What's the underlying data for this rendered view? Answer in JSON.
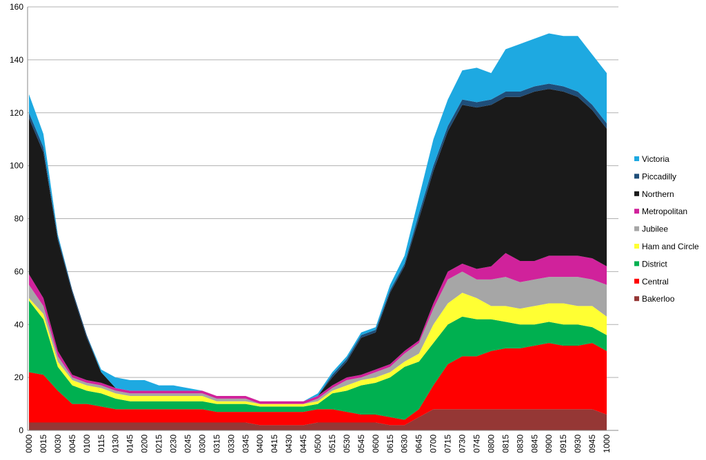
{
  "chart_data": {
    "type": "stacked-area",
    "categories": [
      "0000",
      "0015",
      "0030",
      "0045",
      "0100",
      "0115",
      "0130",
      "0145",
      "0200",
      "0215",
      "0230",
      "0245",
      "0300",
      "0315",
      "0330",
      "0345",
      "0400",
      "0415",
      "0430",
      "0445",
      "0500",
      "0515",
      "0530",
      "0545",
      "0600",
      "0615",
      "0630",
      "0645",
      "0700",
      "0715",
      "0730",
      "0745",
      "0800",
      "0815",
      "0830",
      "0845",
      "0900",
      "0915",
      "0930",
      "0945",
      "1000"
    ],
    "series": [
      {
        "name": "Bakerloo",
        "color": "#953735",
        "values": [
          3,
          3,
          3,
          3,
          3,
          3,
          3,
          3,
          3,
          3,
          3,
          3,
          3,
          3,
          3,
          3,
          2,
          2,
          2,
          2,
          3,
          3,
          3,
          3,
          3,
          2,
          2,
          5,
          8,
          8,
          8,
          8,
          8,
          8,
          8,
          8,
          8,
          8,
          8,
          8,
          6
        ]
      },
      {
        "name": "Central",
        "color": "#ff0000",
        "values": [
          19,
          18,
          12,
          7,
          7,
          6,
          5,
          5,
          5,
          5,
          5,
          5,
          5,
          4,
          4,
          4,
          5,
          5,
          5,
          5,
          5,
          5,
          4,
          3,
          3,
          3,
          2,
          3,
          9,
          17,
          20,
          20,
          22,
          23,
          23,
          24,
          25,
          24,
          24,
          25,
          24
        ]
      },
      {
        "name": "District",
        "color": "#00b050",
        "values": [
          27,
          21,
          9,
          7,
          5,
          5,
          4,
          3,
          3,
          3,
          3,
          3,
          3,
          3,
          3,
          3,
          2,
          2,
          2,
          2,
          2,
          6,
          8,
          11,
          12,
          15,
          20,
          18,
          16,
          15,
          15,
          14,
          12,
          10,
          9,
          8,
          8,
          8,
          8,
          6,
          6
        ]
      },
      {
        "name": "Ham and Circle",
        "color": "#ffff33",
        "values": [
          1,
          2,
          2,
          2,
          2,
          2,
          2,
          2,
          2,
          2,
          2,
          2,
          2,
          1,
          1,
          1,
          1,
          1,
          1,
          1,
          1,
          1,
          2,
          2,
          2,
          2,
          2,
          3,
          7,
          8,
          9,
          8,
          5,
          6,
          6,
          7,
          7,
          8,
          7,
          8,
          7
        ]
      },
      {
        "name": "Jubilee",
        "color": "#a6a6a6",
        "values": [
          5,
          3,
          2,
          1,
          1,
          1,
          1,
          1,
          1,
          1,
          1,
          1,
          1,
          1,
          1,
          1,
          0,
          0,
          0,
          0,
          1,
          1,
          2,
          1,
          2,
          2,
          3,
          4,
          6,
          9,
          8,
          7,
          10,
          11,
          10,
          10,
          10,
          10,
          11,
          10,
          12
        ]
      },
      {
        "name": "Metropolitan",
        "color": "#d0229b",
        "values": [
          4,
          3,
          2,
          1,
          1,
          1,
          1,
          1,
          1,
          1,
          1,
          1,
          1,
          1,
          1,
          1,
          1,
          1,
          1,
          1,
          1,
          1,
          1,
          1,
          1,
          1,
          1,
          1,
          2,
          3,
          3,
          4,
          5,
          9,
          8,
          7,
          8,
          8,
          8,
          8,
          7
        ]
      },
      {
        "name": "Northern",
        "color": "#1a1a1a",
        "values": [
          59,
          55,
          42,
          31,
          16,
          4,
          0,
          0,
          0,
          0,
          0,
          0,
          0,
          0,
          0,
          0,
          0,
          0,
          0,
          0,
          0,
          3,
          6,
          14,
          14,
          27,
          32,
          46,
          50,
          53,
          60,
          61,
          61,
          59,
          62,
          64,
          63,
          62,
          60,
          56,
          52
        ]
      },
      {
        "name": "Piccadilly",
        "color": "#1f4e79",
        "values": [
          2,
          2,
          1,
          1,
          1,
          0,
          0,
          0,
          0,
          0,
          0,
          0,
          0,
          0,
          0,
          0,
          0,
          0,
          0,
          0,
          0,
          1,
          1,
          1,
          1,
          1,
          1,
          2,
          2,
          2,
          2,
          2,
          2,
          2,
          2,
          2,
          2,
          2,
          2,
          2,
          2
        ]
      },
      {
        "name": "Victoria",
        "color": "#1ea9e1",
        "values": [
          7,
          5,
          1,
          0,
          0,
          1,
          4,
          4,
          4,
          2,
          2,
          1,
          0,
          0,
          0,
          0,
          0,
          0,
          0,
          0,
          1,
          1,
          1,
          1,
          1,
          2,
          3,
          6,
          10,
          10,
          11,
          13,
          10,
          16,
          18,
          18,
          19,
          19,
          21,
          19,
          19
        ]
      }
    ],
    "ylim": [
      0,
      160
    ],
    "yticks": [
      0,
      20,
      40,
      60,
      80,
      100,
      120,
      140,
      160
    ],
    "grid": true,
    "legend": "right"
  }
}
